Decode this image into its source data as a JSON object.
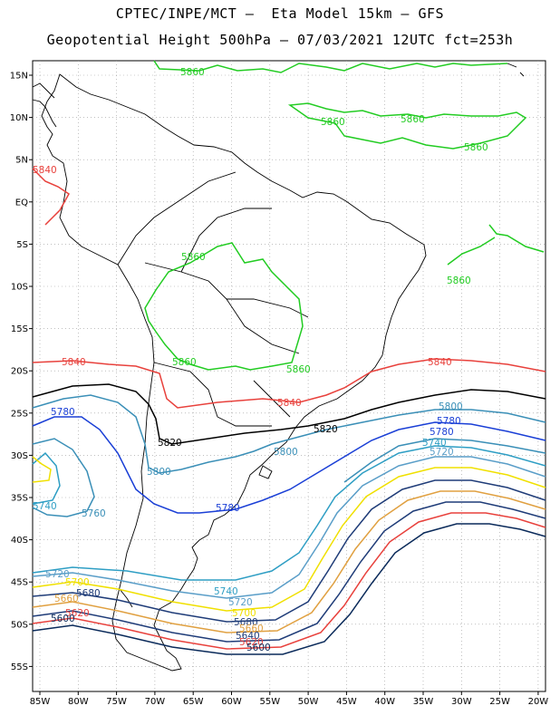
{
  "header": {
    "line1": "CPTEC/INPE/MCT –  Eta Model 15km – GFS",
    "line2": "Geopotential Height 500hPa – 07/03/2021 12UTC fct=253h"
  },
  "axes": {
    "lat_labels": [
      "15N",
      "10N",
      "5N",
      "EQ",
      "5S",
      "10S",
      "15S",
      "20S",
      "25S",
      "30S",
      "35S",
      "40S",
      "45S",
      "50S",
      "55S"
    ],
    "lon_labels": [
      "85W",
      "80W",
      "75W",
      "70W",
      "65W",
      "60W",
      "55W",
      "50W",
      "45W",
      "40W",
      "35W",
      "30W",
      "25W",
      "20W"
    ]
  },
  "colors": {
    "c5860": "#22cc22",
    "c5840": "#e8413c",
    "c5820": "#000000",
    "c5800": "#3a8fb7",
    "c5780": "#1a3fd6",
    "c5740": "#2e9ec4",
    "c5720": "#5a9ec8",
    "c5700": "#f0e000",
    "c5680": "#1f3c78",
    "c5660": "#e0a040",
    "c5620": "#e8413c",
    "c5600": "#0a2a5a"
  },
  "contour_labels": [
    {
      "id": "l5860a",
      "text": "5860",
      "color": "c5860"
    },
    {
      "id": "l5860b",
      "text": "5860",
      "color": "c5860"
    },
    {
      "id": "l5860c",
      "text": "5860",
      "color": "c5860"
    },
    {
      "id": "l5860d",
      "text": "5860",
      "color": "c5860"
    },
    {
      "id": "l5860e",
      "text": "5860",
      "color": "c5860"
    },
    {
      "id": "l5860f",
      "text": "5860",
      "color": "c5860"
    },
    {
      "id": "l5860g",
      "text": "5860",
      "color": "c5860"
    },
    {
      "id": "l5860h",
      "text": "5860",
      "color": "c5860"
    },
    {
      "id": "l5840a",
      "text": "5840",
      "color": "c5840"
    },
    {
      "id": "l5840b",
      "text": "5840",
      "color": "c5840"
    },
    {
      "id": "l5840c",
      "text": "5840",
      "color": "c5840"
    },
    {
      "id": "l5840d",
      "text": "5840",
      "color": "c5840"
    },
    {
      "id": "l5820a",
      "text": "5820",
      "color": "c5820"
    },
    {
      "id": "l5820b",
      "text": "5820",
      "color": "c5820"
    },
    {
      "id": "l5800a",
      "text": "5800",
      "color": "c5800"
    },
    {
      "id": "l5800b",
      "text": "5800",
      "color": "c5800"
    },
    {
      "id": "l5800c",
      "text": "5800",
      "color": "c5800"
    },
    {
      "id": "l5780a",
      "text": "5780",
      "color": "c5780"
    },
    {
      "id": "l5780b",
      "text": "5780",
      "color": "c5780"
    },
    {
      "id": "l5780c",
      "text": "5780",
      "color": "c5780"
    },
    {
      "id": "l5780d",
      "text": "5780",
      "color": "c5780"
    },
    {
      "id": "l5760a",
      "text": "5760",
      "color": "c5800"
    },
    {
      "id": "l5740a",
      "text": "5740",
      "color": "c5740"
    },
    {
      "id": "l5740b",
      "text": "5740",
      "color": "c5740"
    },
    {
      "id": "l5740c",
      "text": "5740",
      "color": "c5740"
    },
    {
      "id": "l5720a",
      "text": "5720",
      "color": "c5720"
    },
    {
      "id": "l5720b",
      "text": "5720",
      "color": "c5720"
    },
    {
      "id": "l5720c",
      "text": "5720",
      "color": "c5720"
    },
    {
      "id": "l5700a",
      "text": "5700",
      "color": "c5700"
    },
    {
      "id": "l5700b",
      "text": "5700",
      "color": "c5700"
    },
    {
      "id": "l5680a",
      "text": "5680",
      "color": "c5680"
    },
    {
      "id": "l5680b",
      "text": "5680",
      "color": "c5680"
    },
    {
      "id": "l5660a",
      "text": "5660",
      "color": "c5660"
    },
    {
      "id": "l5660b",
      "text": "5660",
      "color": "c5660"
    },
    {
      "id": "l5640a",
      "text": "5640",
      "color": "c5680"
    },
    {
      "id": "l5620a",
      "text": "5620",
      "color": "c5620"
    },
    {
      "id": "l5620b",
      "text": "5620",
      "color": "c5620"
    },
    {
      "id": "l5600a",
      "text": "5600",
      "color": "c5600"
    },
    {
      "id": "l5600b",
      "text": "5600",
      "color": "c5600"
    }
  ]
}
